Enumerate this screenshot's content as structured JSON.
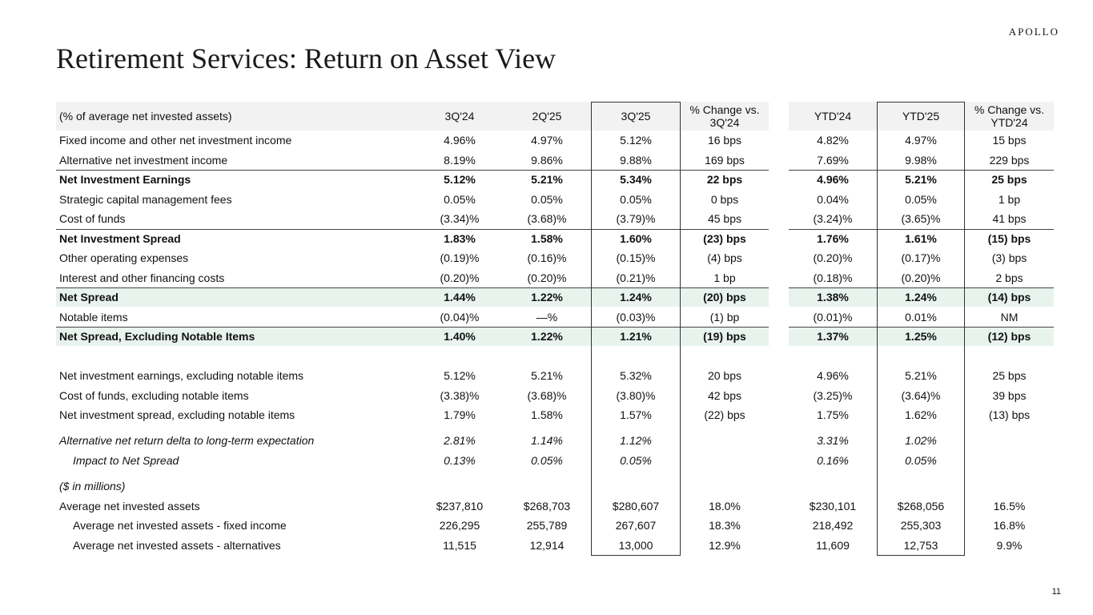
{
  "header": {
    "logo": "APOLLO",
    "title": "Retirement Services: Return on Asset View"
  },
  "table": {
    "columns": [
      "(% of average net invested assets)",
      "3Q'24",
      "2Q'25",
      "3Q'25",
      "% Change vs. 3Q'24",
      "YTD'24",
      "YTD'25",
      "% Change vs. YTD'24"
    ],
    "rows": [
      {
        "label": "Fixed income and other net investment income",
        "cells": [
          "4.96%",
          "4.97%",
          "5.12%",
          "16 bps",
          "4.82%",
          "4.97%",
          "15 bps"
        ]
      },
      {
        "label": "Alternative net investment income",
        "cells": [
          "8.19%",
          "9.86%",
          "9.88%",
          "169 bps",
          "7.69%",
          "9.98%",
          "229 bps"
        ]
      },
      {
        "label": "Net Investment Earnings",
        "cells": [
          "5.12%",
          "5.21%",
          "5.34%",
          "22 bps",
          "4.96%",
          "5.21%",
          "25 bps"
        ]
      },
      {
        "label": "Strategic capital management fees",
        "cells": [
          "0.05%",
          "0.05%",
          "0.05%",
          "0 bps",
          "0.04%",
          "0.05%",
          "1 bp"
        ]
      },
      {
        "label": "Cost of funds",
        "cells": [
          "(3.34)%",
          "(3.68)%",
          "(3.79)%",
          "45 bps",
          "(3.24)%",
          "(3.65)%",
          "41 bps"
        ]
      },
      {
        "label": "Net Investment Spread",
        "cells": [
          "1.83%",
          "1.58%",
          "1.60%",
          "(23) bps",
          "1.76%",
          "1.61%",
          "(15) bps"
        ]
      },
      {
        "label": "Other operating expenses",
        "cells": [
          "(0.19)%",
          "(0.16)%",
          "(0.15)%",
          "(4) bps",
          "(0.20)%",
          "(0.17)%",
          "(3) bps"
        ]
      },
      {
        "label": "Interest and other financing costs",
        "cells": [
          "(0.20)%",
          "(0.20)%",
          "(0.21)%",
          "1 bp",
          "(0.18)%",
          "(0.20)%",
          "2 bps"
        ]
      },
      {
        "label": "Net Spread",
        "cells": [
          "1.44%",
          "1.22%",
          "1.24%",
          "(20) bps",
          "1.38%",
          "1.24%",
          "(14) bps"
        ]
      },
      {
        "label": "Notable items",
        "cells": [
          "(0.04)%",
          "—%",
          "(0.03)%",
          "(1) bp",
          "(0.01)%",
          "0.01%",
          "NM"
        ]
      },
      {
        "label": "Net Spread, Excluding Notable Items",
        "cells": [
          "1.40%",
          "1.22%",
          "1.21%",
          "(19) bps",
          "1.37%",
          "1.25%",
          "(12) bps"
        ]
      },
      {
        "label": "Net investment earnings, excluding notable items",
        "cells": [
          "5.12%",
          "5.21%",
          "5.32%",
          "20 bps",
          "4.96%",
          "5.21%",
          "25 bps"
        ]
      },
      {
        "label": "Cost of funds, excluding notable items",
        "cells": [
          "(3.38)%",
          "(3.68)%",
          "(3.80)%",
          "42 bps",
          "(3.25)%",
          "(3.64)%",
          "39 bps"
        ]
      },
      {
        "label": "Net investment spread, excluding notable items",
        "cells": [
          "1.79%",
          "1.58%",
          "1.57%",
          "(22) bps",
          "1.75%",
          "1.62%",
          "(13) bps"
        ]
      },
      {
        "label": "Alternative net return delta to long-term expectation",
        "cells": [
          "2.81%",
          "1.14%",
          "1.12%",
          null,
          "3.31%",
          "1.02%",
          null
        ]
      },
      {
        "label": "Impact to Net Spread",
        "cells": [
          "0.13%",
          "0.05%",
          "0.05%",
          null,
          "0.16%",
          "0.05%",
          null
        ]
      },
      {
        "label": "($ in millions)",
        "cells": []
      },
      {
        "label": "Average net invested assets",
        "cells": [
          "$237,810",
          "$268,703",
          "$280,607",
          "18.0%",
          "$230,101",
          "$268,056",
          "16.5%"
        ]
      },
      {
        "label": "Average net invested assets - fixed income",
        "cells": [
          "226,295",
          "255,789",
          "267,607",
          "18.3%",
          "218,492",
          "255,303",
          "16.8%"
        ]
      },
      {
        "label": "Average net invested assets - alternatives",
        "cells": [
          "11,515",
          "12,914",
          "13,000",
          "12.9%",
          "11,609",
          "12,753",
          "9.9%"
        ]
      }
    ]
  },
  "footer": {
    "page": "11"
  }
}
